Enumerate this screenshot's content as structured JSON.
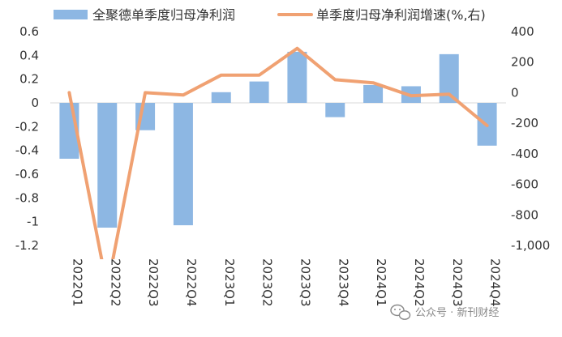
{
  "chart_data": {
    "type": "bar",
    "categories": [
      "2022Q1",
      "2022Q2",
      "2022Q3",
      "2022Q4",
      "2023Q1",
      "2023Q2",
      "2023Q3",
      "2023Q4",
      "2024Q1",
      "2024Q2",
      "2024Q3",
      "2024Q4"
    ],
    "series": [
      {
        "name": "全聚德单季度归母净利润",
        "type": "bar",
        "axis": "left",
        "color": "#8DB7E3",
        "values": [
          -0.47,
          -1.05,
          -0.23,
          -1.03,
          0.09,
          0.18,
          0.43,
          -0.12,
          0.15,
          0.14,
          0.41,
          -0.36
        ]
      },
      {
        "name": "单季度归母净利润增速(%,右)",
        "type": "line",
        "axis": "right",
        "color": "#F0A172",
        "values": [
          0,
          -1280,
          0,
          -15,
          115,
          115,
          290,
          85,
          65,
          -20,
          -10,
          -215
        ]
      }
    ],
    "left_axis": {
      "ylim": [
        -1.2,
        0.6
      ],
      "ticks": [
        0.6,
        0.4,
        0.2,
        0,
        -0.2,
        -0.4,
        -0.6,
        -0.8,
        -1,
        -1.2
      ],
      "tick_labels": [
        "0.6",
        "0.4",
        "0.2",
        "0",
        "-0.2",
        "-0.4",
        "-0.6",
        "-0.8",
        "-1",
        "-1.2"
      ]
    },
    "right_axis": {
      "ylim": [
        -1000,
        400
      ],
      "ticks": [
        400,
        200,
        0,
        -200,
        -400,
        -600,
        -800,
        -1000
      ],
      "tick_labels": [
        "400",
        "200",
        "0",
        "-200",
        "-400",
        "-600",
        "-800",
        "-1,000"
      ]
    },
    "grid": false,
    "legend_position": "top"
  },
  "watermark": {
    "text": "公众号 · 新刊财经",
    "icon": "wechat-icon"
  }
}
